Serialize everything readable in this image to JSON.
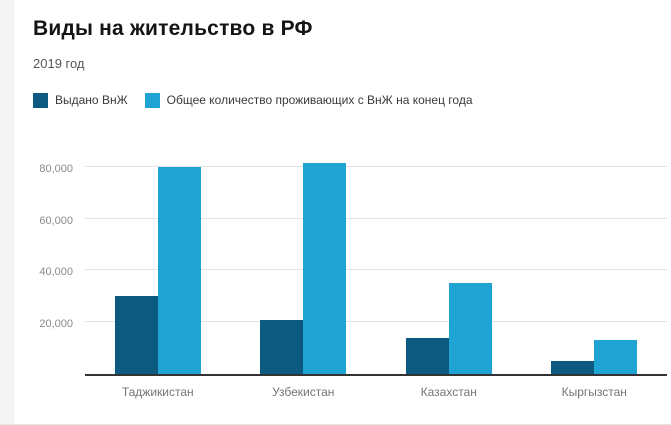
{
  "header": {
    "title": "Виды на жительство в РФ",
    "subtitle": "2019 год"
  },
  "colors": {
    "series_dark": "#0d5a80",
    "series_light": "#1fa3d2",
    "gridline": "#e2e2e2",
    "axis_line": "#333333",
    "tick_label": "#8a8a8a",
    "category_label": "#757575",
    "page_left_strip": "#f5f5f5"
  },
  "chart_data": {
    "type": "bar",
    "title": "Виды на жительство в РФ",
    "subtitle": "2019 год",
    "categories": [
      "Таджикистан",
      "Узбекистан",
      "Казахстан",
      "Кыргызстан"
    ],
    "series": [
      {
        "name": "Выдано ВнЖ",
        "color": "#0d5a80",
        "values": [
          30000,
          21000,
          14000,
          5000
        ]
      },
      {
        "name": "Общее количество проживающих с ВнЖ на конец года",
        "color": "#1fa3d2",
        "values": [
          80000,
          81500,
          35000,
          13000
        ]
      }
    ],
    "xlabel": "",
    "ylabel": "",
    "ylim": [
      0,
      88000
    ],
    "yticks": [
      20000,
      40000,
      60000,
      80000
    ],
    "ytick_labels": [
      "20,000",
      "40,000",
      "60,000",
      "80,000"
    ],
    "grid": true,
    "legend_position": "top-left"
  }
}
